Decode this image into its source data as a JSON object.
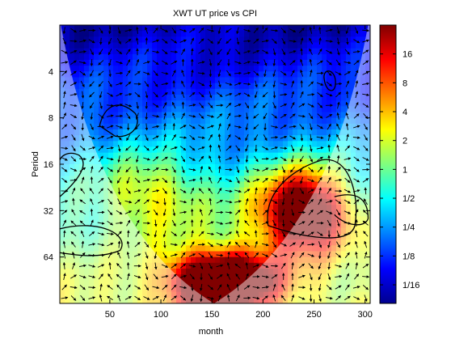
{
  "chart_data": {
    "type": "heatmap",
    "title": "XWT UT price vs CPI",
    "xlabel": "month",
    "ylabel": "Period",
    "xlim": [
      1,
      305
    ],
    "ylim": [
      2,
      128
    ],
    "y_scale": "log2",
    "x_ticks": [
      50,
      100,
      150,
      200,
      250,
      300
    ],
    "x_tick_labels": [
      "50",
      "100",
      "150",
      "200",
      "250",
      "300"
    ],
    "y_ticks": [
      4,
      8,
      16,
      32,
      64
    ],
    "y_tick_labels": [
      "4",
      "8",
      "16",
      "32",
      "64"
    ],
    "colorbar": {
      "colormap": "jet",
      "scale": "log2",
      "range": [
        0.04,
        32
      ],
      "ticks": [
        0.0625,
        0.125,
        0.25,
        0.5,
        1,
        2,
        4,
        8,
        16
      ],
      "tick_labels": [
        "1/16",
        "1/8",
        "1/4",
        "1/2",
        "1",
        "2",
        "4",
        "8",
        "16"
      ]
    },
    "power_regions_log2": [
      {
        "description": "high power band",
        "x_range": [
          150,
          300
        ],
        "period_range": [
          16,
          64
        ],
        "level": 8
      },
      {
        "description": "high power band",
        "x_range": [
          110,
          210
        ],
        "period_range": [
          64,
          128
        ],
        "level": 16
      },
      {
        "description": "low power band",
        "x_range": [
          1,
          305
        ],
        "period_range": [
          2,
          14
        ],
        "level": 0.06
      }
    ],
    "arrows": "phase arrows shown on grid",
    "cone_of_influence": "shaded outside parabola, vertex near month 152"
  }
}
